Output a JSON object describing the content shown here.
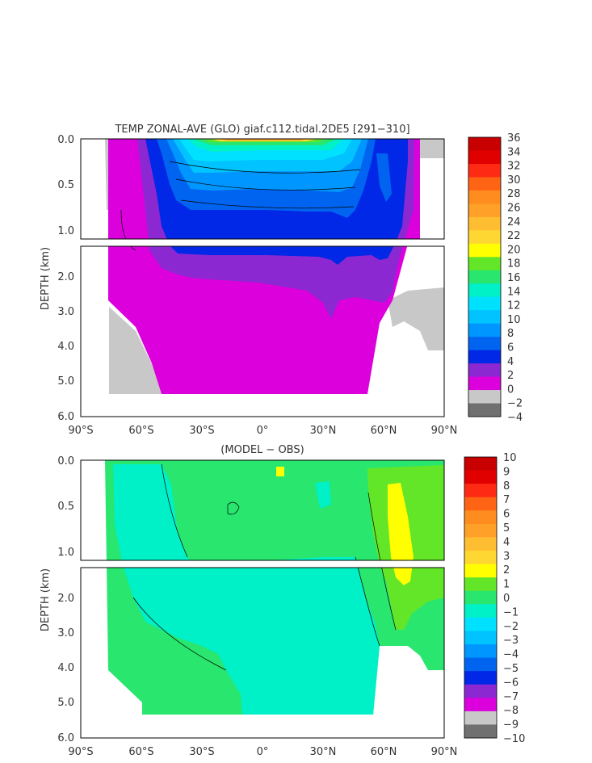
{
  "chart_data": [
    {
      "type": "heatmap",
      "title": "TEMP ZONAL-AVE (GLO) giaf.c112.tidal.2DE5 [291−310]",
      "ylabel": "DEPTH (km)",
      "xlim": [
        -90,
        90
      ],
      "ylim": [
        0,
        6
      ],
      "x_ticks": [
        "90°S",
        "60°S",
        "30°S",
        "0°",
        "30°N",
        "60°N",
        "90°N"
      ],
      "y_ticks_upper": [
        "0.0",
        "0.5",
        "1.0"
      ],
      "y_ticks_lower": [
        "2.0",
        "3.0",
        "4.0",
        "5.0",
        "6.0"
      ],
      "colorbar_labels": [
        "36",
        "34",
        "32",
        "30",
        "28",
        "26",
        "24",
        "22",
        "20",
        "18",
        "16",
        "14",
        "12",
        "10",
        "8",
        "6",
        "4",
        "2",
        "0",
        "−2",
        "−4"
      ],
      "colorbar_colors": [
        "#c80000",
        "#e00000",
        "#ff2a14",
        "#ff6414",
        "#ff8c1e",
        "#ffa028",
        "#ffbe32",
        "#ffd732",
        "#ffff00",
        "#64e628",
        "#28e66e",
        "#00f0c8",
        "#00e1ff",
        "#00c3ff",
        "#0096ff",
        "#0064f0",
        "#0028e6",
        "#8c28d2",
        "#dc00dc",
        "#c8c8c8",
        "#707070"
      ]
    },
    {
      "type": "heatmap",
      "title": "(MODEL − OBS)",
      "ylabel": "DEPTH (km)",
      "xlim": [
        -90,
        90
      ],
      "ylim": [
        0,
        6
      ],
      "x_ticks": [
        "90°S",
        "60°S",
        "30°S",
        "0°",
        "30°N",
        "60°N",
        "90°N"
      ],
      "y_ticks_upper": [
        "0.0",
        "0.5",
        "1.0"
      ],
      "y_ticks_lower": [
        "2.0",
        "3.0",
        "4.0",
        "5.0",
        "6.0"
      ],
      "colorbar_labels": [
        "10",
        "9",
        "8",
        "7",
        "6",
        "5",
        "4",
        "3",
        "2",
        "1",
        "0",
        "−1",
        "−2",
        "−3",
        "−4",
        "−5",
        "−6",
        "−7",
        "−8",
        "−9",
        "−10"
      ],
      "colorbar_colors": [
        "#c80000",
        "#e00000",
        "#ff2a14",
        "#ff6414",
        "#ff8c1e",
        "#ffa028",
        "#ffbe32",
        "#ffd732",
        "#ffff00",
        "#64e628",
        "#28e66e",
        "#00f0c8",
        "#00e1ff",
        "#00c3ff",
        "#0096ff",
        "#0064f0",
        "#0028e6",
        "#8c28d2",
        "#dc00dc",
        "#c8c8c8",
        "#707070"
      ]
    }
  ]
}
